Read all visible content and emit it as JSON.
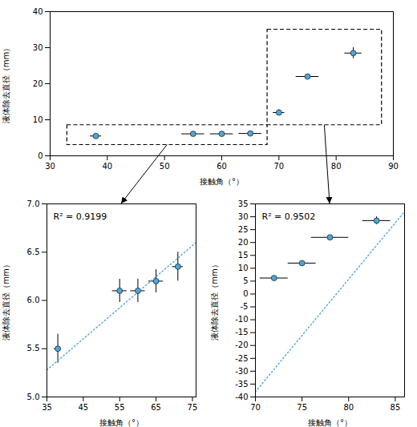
{
  "chart_data": [
    {
      "type": "scatter",
      "xlabel": "接触角（°）",
      "ylabel": "液体除去直径（mm）",
      "xlim": [
        30,
        90
      ],
      "ylim": [
        0,
        40
      ],
      "xticks": [
        30,
        40,
        50,
        60,
        70,
        80,
        90
      ],
      "yticks": [
        0,
        10,
        20,
        30,
        40
      ],
      "series": [
        {
          "type": "scatter",
          "marker": "circle",
          "color": "#4da6d8",
          "x": [
            38,
            55,
            60,
            65,
            70,
            75,
            83
          ],
          "values": [
            5.5,
            6.1,
            6.1,
            6.2,
            12.0,
            22.0,
            28.5
          ],
          "xerr": [
            1,
            2,
            2,
            2,
            1,
            2,
            1.5
          ],
          "yerr": [
            0.2,
            0.3,
            0.3,
            0.3,
            0.8,
            0.5,
            1.5
          ]
        }
      ],
      "boxes": [
        {
          "x0": 33,
          "x1": 68,
          "y0": 3.0,
          "y1": 8.5
        },
        {
          "x0": 68,
          "x1": 88,
          "y0": 8.5,
          "y1": 35
        }
      ]
    },
    {
      "type": "scatter",
      "xlabel": "接触角（°）",
      "ylabel": "液体除去直径（mm）",
      "xlim": [
        35,
        76
      ],
      "ylim": [
        5.0,
        7.0
      ],
      "xticks": [
        35,
        45,
        55,
        65,
        75
      ],
      "yticks": [
        {
          "value": 5.0,
          "label": "5.0"
        },
        5.5,
        {
          "value": 6.0,
          "label": "6.0"
        },
        6.5,
        {
          "value": 7.0,
          "label": "7.0"
        }
      ],
      "series": [
        {
          "type": "scatter",
          "marker": "circle",
          "color": "#4da6d8",
          "x": [
            38,
            55,
            60,
            65,
            71
          ],
          "values": [
            5.5,
            6.1,
            6.1,
            6.2,
            6.35
          ],
          "xerr": [
            1,
            2,
            2,
            2,
            1.5
          ],
          "yerr": [
            0.15,
            0.12,
            0.12,
            0.12,
            0.15
          ]
        },
        {
          "type": "line",
          "line_style": "dotted",
          "color": "#4da6d8",
          "x": [
            35,
            76
          ],
          "values": [
            5.28,
            6.6
          ]
        }
      ],
      "annotations": [
        "R² = 0.9199"
      ]
    },
    {
      "type": "scatter",
      "xlabel": "接触角（°）",
      "ylabel": "液体除去直径（mm）",
      "xlim": [
        70,
        86
      ],
      "ylim": [
        -40,
        35
      ],
      "xticks": [
        70,
        75,
        80,
        85
      ],
      "yticks": [
        -40,
        -35,
        -30,
        -25,
        -20,
        -15,
        -10,
        -5,
        0,
        5,
        10,
        15,
        20,
        25,
        30,
        35
      ],
      "series": [
        {
          "type": "scatter",
          "marker": "circle",
          "color": "#4da6d8",
          "x": [
            72,
            75,
            78,
            83
          ],
          "values": [
            6.2,
            12.0,
            22.0,
            28.5
          ],
          "xerr": [
            1.5,
            1.5,
            2.0,
            1.5
          ],
          "yerr": [
            0.5,
            0.8,
            0.5,
            1.5
          ]
        },
        {
          "type": "line",
          "line_style": "dotted",
          "color": "#4da6d8",
          "x": [
            70,
            86
          ],
          "values": [
            -38.0,
            32.0
          ]
        }
      ],
      "annotations": [
        "R² = 0.9502"
      ]
    }
  ]
}
